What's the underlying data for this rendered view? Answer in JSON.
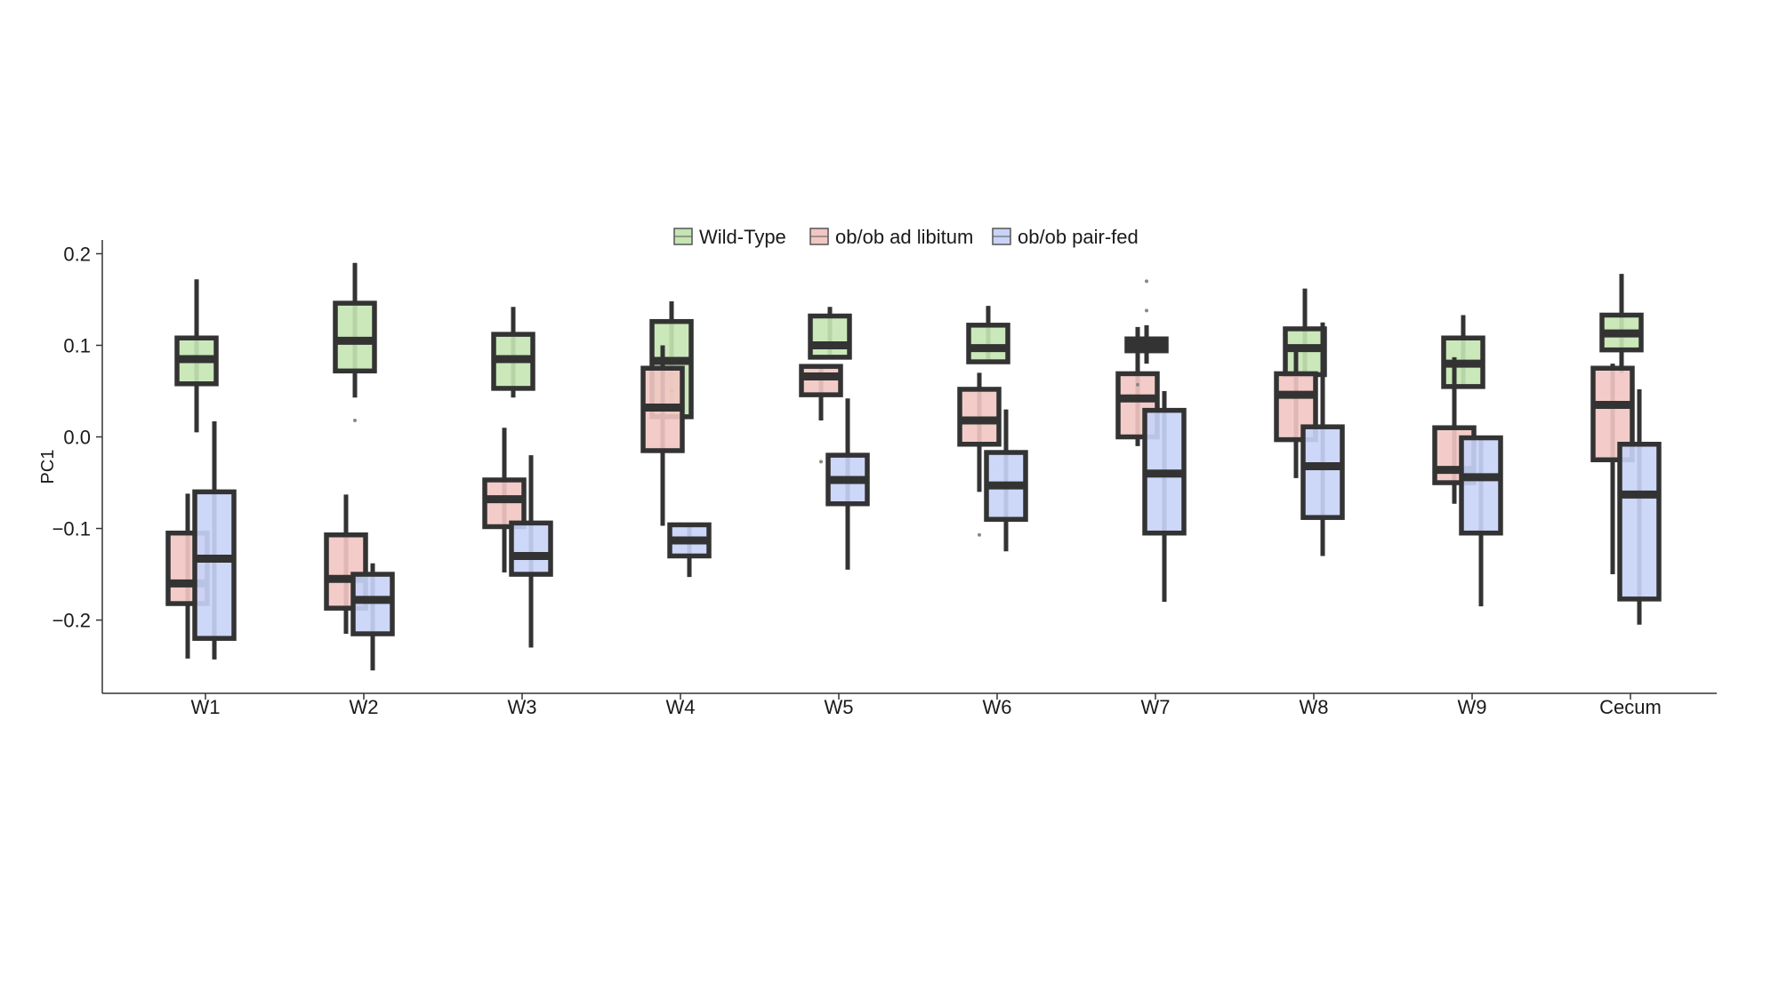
{
  "chart_data": {
    "type": "boxplot",
    "ylabel": "PC1",
    "xlabel": "",
    "ylim": [
      -0.28,
      0.215
    ],
    "yticks": [
      -0.2,
      -0.1,
      0.0,
      0.1,
      0.2
    ],
    "ytick_labels": [
      "−0.2",
      "−0.1",
      "0.0",
      "0.1",
      "0.2"
    ],
    "categories": [
      "W1",
      "W2",
      "W3",
      "W4",
      "W5",
      "W6",
      "W7",
      "W8",
      "W9",
      "Cecum"
    ],
    "legend_position": "top-center",
    "grid": false,
    "series": [
      {
        "name": "Wild-Type",
        "color": "#c5e5b4",
        "boxes": [
          {
            "min": 0.005,
            "q1": 0.058,
            "median": 0.085,
            "q3": 0.108,
            "max": 0.172,
            "outliers": []
          },
          {
            "min": 0.043,
            "q1": 0.072,
            "median": 0.105,
            "q3": 0.146,
            "max": 0.19,
            "outliers": [
              0.018
            ]
          },
          {
            "min": 0.043,
            "q1": 0.053,
            "median": 0.085,
            "q3": 0.112,
            "max": 0.142,
            "outliers": []
          },
          {
            "min": 0.022,
            "q1": 0.022,
            "median": 0.083,
            "q3": 0.126,
            "max": 0.148,
            "outliers": [
              0.05
            ]
          },
          {
            "min": 0.087,
            "q1": 0.087,
            "median": 0.1,
            "q3": 0.132,
            "max": 0.142,
            "outliers": []
          },
          {
            "min": 0.082,
            "q1": 0.082,
            "median": 0.097,
            "q3": 0.122,
            "max": 0.143,
            "outliers": []
          },
          {
            "min": 0.08,
            "q1": 0.094,
            "median": 0.101,
            "q3": 0.107,
            "max": 0.122,
            "outliers": [
              0.17,
              0.138
            ]
          },
          {
            "min": 0.068,
            "q1": 0.068,
            "median": 0.097,
            "q3": 0.118,
            "max": 0.162,
            "outliers": []
          },
          {
            "min": 0.055,
            "q1": 0.055,
            "median": 0.08,
            "q3": 0.108,
            "max": 0.133,
            "outliers": []
          },
          {
            "min": 0.07,
            "q1": 0.095,
            "median": 0.113,
            "q3": 0.133,
            "max": 0.178,
            "outliers": []
          }
        ]
      },
      {
        "name": "ob/ob ad libitum",
        "color": "#f2c6c3",
        "boxes": [
          {
            "min": -0.242,
            "q1": -0.182,
            "median": -0.16,
            "q3": -0.105,
            "max": -0.062,
            "outliers": []
          },
          {
            "min": -0.215,
            "q1": -0.187,
            "median": -0.155,
            "q3": -0.107,
            "max": -0.063,
            "outliers": []
          },
          {
            "min": -0.148,
            "q1": -0.098,
            "median": -0.068,
            "q3": -0.047,
            "max": 0.01,
            "outliers": []
          },
          {
            "min": -0.097,
            "q1": -0.015,
            "median": 0.032,
            "q3": 0.075,
            "max": 0.1,
            "outliers": []
          },
          {
            "min": 0.018,
            "q1": 0.046,
            "median": 0.066,
            "q3": 0.077,
            "max": 0.077,
            "outliers": [
              -0.027
            ]
          },
          {
            "min": -0.06,
            "q1": -0.008,
            "median": 0.018,
            "q3": 0.052,
            "max": 0.07,
            "outliers": [
              -0.107
            ]
          },
          {
            "min": -0.01,
            "q1": 0.0,
            "median": 0.042,
            "q3": 0.069,
            "max": 0.12,
            "outliers": [
              0.057
            ]
          },
          {
            "min": -0.045,
            "q1": -0.003,
            "median": 0.046,
            "q3": 0.069,
            "max": 0.1,
            "outliers": []
          },
          {
            "min": -0.073,
            "q1": -0.05,
            "median": -0.036,
            "q3": 0.01,
            "max": 0.087,
            "outliers": []
          },
          {
            "min": -0.15,
            "q1": -0.025,
            "median": 0.035,
            "q3": 0.075,
            "max": 0.08,
            "outliers": []
          }
        ]
      },
      {
        "name": "ob/ob pair-fed",
        "color": "#c8d3f7",
        "boxes": [
          {
            "min": -0.243,
            "q1": -0.22,
            "median": -0.133,
            "q3": -0.06,
            "max": 0.017,
            "outliers": []
          },
          {
            "min": -0.255,
            "q1": -0.215,
            "median": -0.178,
            "q3": -0.15,
            "max": -0.138,
            "outliers": []
          },
          {
            "min": -0.23,
            "q1": -0.15,
            "median": -0.13,
            "q3": -0.094,
            "max": -0.02,
            "outliers": []
          },
          {
            "min": -0.153,
            "q1": -0.13,
            "median": -0.113,
            "q3": -0.096,
            "max": -0.096,
            "outliers": []
          },
          {
            "min": -0.145,
            "q1": -0.073,
            "median": -0.047,
            "q3": -0.02,
            "max": 0.042,
            "outliers": []
          },
          {
            "min": -0.125,
            "q1": -0.09,
            "median": -0.053,
            "q3": -0.017,
            "max": 0.03,
            "outliers": []
          },
          {
            "min": -0.18,
            "q1": -0.105,
            "median": -0.04,
            "q3": 0.029,
            "max": 0.05,
            "outliers": []
          },
          {
            "min": -0.13,
            "q1": -0.088,
            "median": -0.032,
            "q3": 0.011,
            "max": 0.125,
            "outliers": []
          },
          {
            "min": -0.185,
            "q1": -0.105,
            "median": -0.044,
            "q3": -0.001,
            "max": -0.001,
            "outliers": []
          },
          {
            "min": -0.205,
            "q1": -0.177,
            "median": -0.063,
            "q3": -0.008,
            "max": 0.052,
            "outliers": []
          }
        ]
      }
    ]
  }
}
